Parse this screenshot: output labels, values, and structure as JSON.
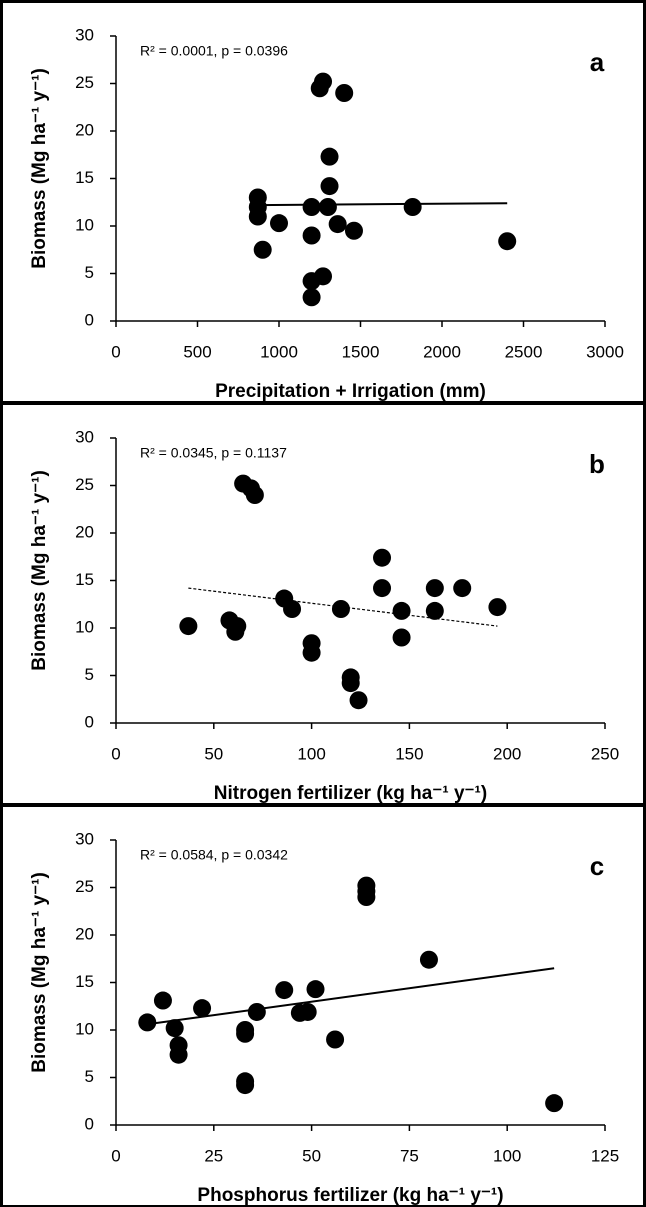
{
  "chart_data": [
    {
      "type": "scatter",
      "label": "a",
      "annotation": "R² = 0.0001, p = 0.0396",
      "x_label": "Precipitation + Irrigation (mm)",
      "y_label": "Biomass (Mg ha⁻¹ y⁻¹)",
      "x": [
        870,
        870,
        870,
        900,
        1000,
        1200,
        1200,
        1200,
        1200,
        1250,
        1270,
        1270,
        1300,
        1310,
        1310,
        1360,
        1400,
        1460,
        1820,
        2400
      ],
      "values": [
        13,
        12,
        11,
        7.5,
        10.3,
        12,
        9,
        4.2,
        2.5,
        24.5,
        25.2,
        4.7,
        12,
        14.2,
        17.3,
        10.2,
        24,
        9.5,
        12,
        8.4
      ],
      "color": "#000000",
      "trendline": {
        "x": [
          870,
          2400
        ],
        "values": [
          12.2,
          12.4
        ],
        "style": "solid"
      },
      "xlim": [
        0,
        3000
      ],
      "xticks": [
        0,
        500,
        1000,
        1500,
        2000,
        2500,
        3000
      ],
      "ylim": [
        0,
        30
      ],
      "yticks": [
        0,
        5,
        10,
        15,
        20,
        25,
        30
      ]
    },
    {
      "type": "scatter",
      "label": "b",
      "annotation": "R² = 0.0345, p = 0.1137",
      "x_label": "Nitrogen fertilizer (kg ha⁻¹ y⁻¹)",
      "y_label": "Biomass (Mg ha⁻¹ y⁻¹)",
      "x": [
        37,
        58,
        61,
        62,
        65,
        69,
        71,
        86,
        90,
        100,
        100,
        115,
        120,
        120,
        124,
        136,
        136,
        146,
        146,
        163,
        163,
        177,
        195
      ],
      "values": [
        10.2,
        10.8,
        9.6,
        10.2,
        25.2,
        24.7,
        24,
        13.1,
        12,
        8.4,
        7.4,
        12,
        4.8,
        4.2,
        2.4,
        17.4,
        14.2,
        11.8,
        9,
        14.2,
        11.8,
        14.2,
        12.2
      ],
      "color": "#000000",
      "trendline": {
        "x": [
          37,
          195
        ],
        "values": [
          14.2,
          10.2
        ],
        "style": "dashed"
      },
      "xlim": [
        0,
        250
      ],
      "xticks": [
        0,
        50,
        100,
        150,
        200,
        250
      ],
      "ylim": [
        0,
        30
      ],
      "yticks": [
        0,
        5,
        10,
        15,
        20,
        25,
        30
      ]
    },
    {
      "type": "scatter",
      "label": "c",
      "annotation": "R² = 0.0584, p = 0.0342",
      "x_label": "Phosphorus  fertilizer (kg ha⁻¹ y⁻¹)",
      "y_label": "Biomass (Mg ha⁻¹ y⁻¹)",
      "x": [
        8,
        12,
        15,
        16,
        16,
        22,
        33,
        33,
        33,
        33,
        36,
        43,
        47,
        49,
        51,
        56,
        64,
        64,
        64,
        80,
        112
      ],
      "values": [
        10.8,
        13.1,
        10.2,
        8.4,
        7.4,
        12.3,
        10,
        9.6,
        4.6,
        4.2,
        11.9,
        14.2,
        11.8,
        11.9,
        14.3,
        9,
        25.2,
        24.6,
        24,
        17.4,
        2.3
      ],
      "color": "#000000",
      "trendline": {
        "x": [
          8,
          112
        ],
        "values": [
          10.6,
          16.5
        ],
        "style": "solid"
      },
      "xlim": [
        0,
        125
      ],
      "xticks": [
        0,
        25,
        50,
        75,
        100,
        125
      ],
      "ylim": [
        0,
        30
      ],
      "yticks": [
        0,
        5,
        10,
        15,
        20,
        25,
        30
      ]
    }
  ]
}
